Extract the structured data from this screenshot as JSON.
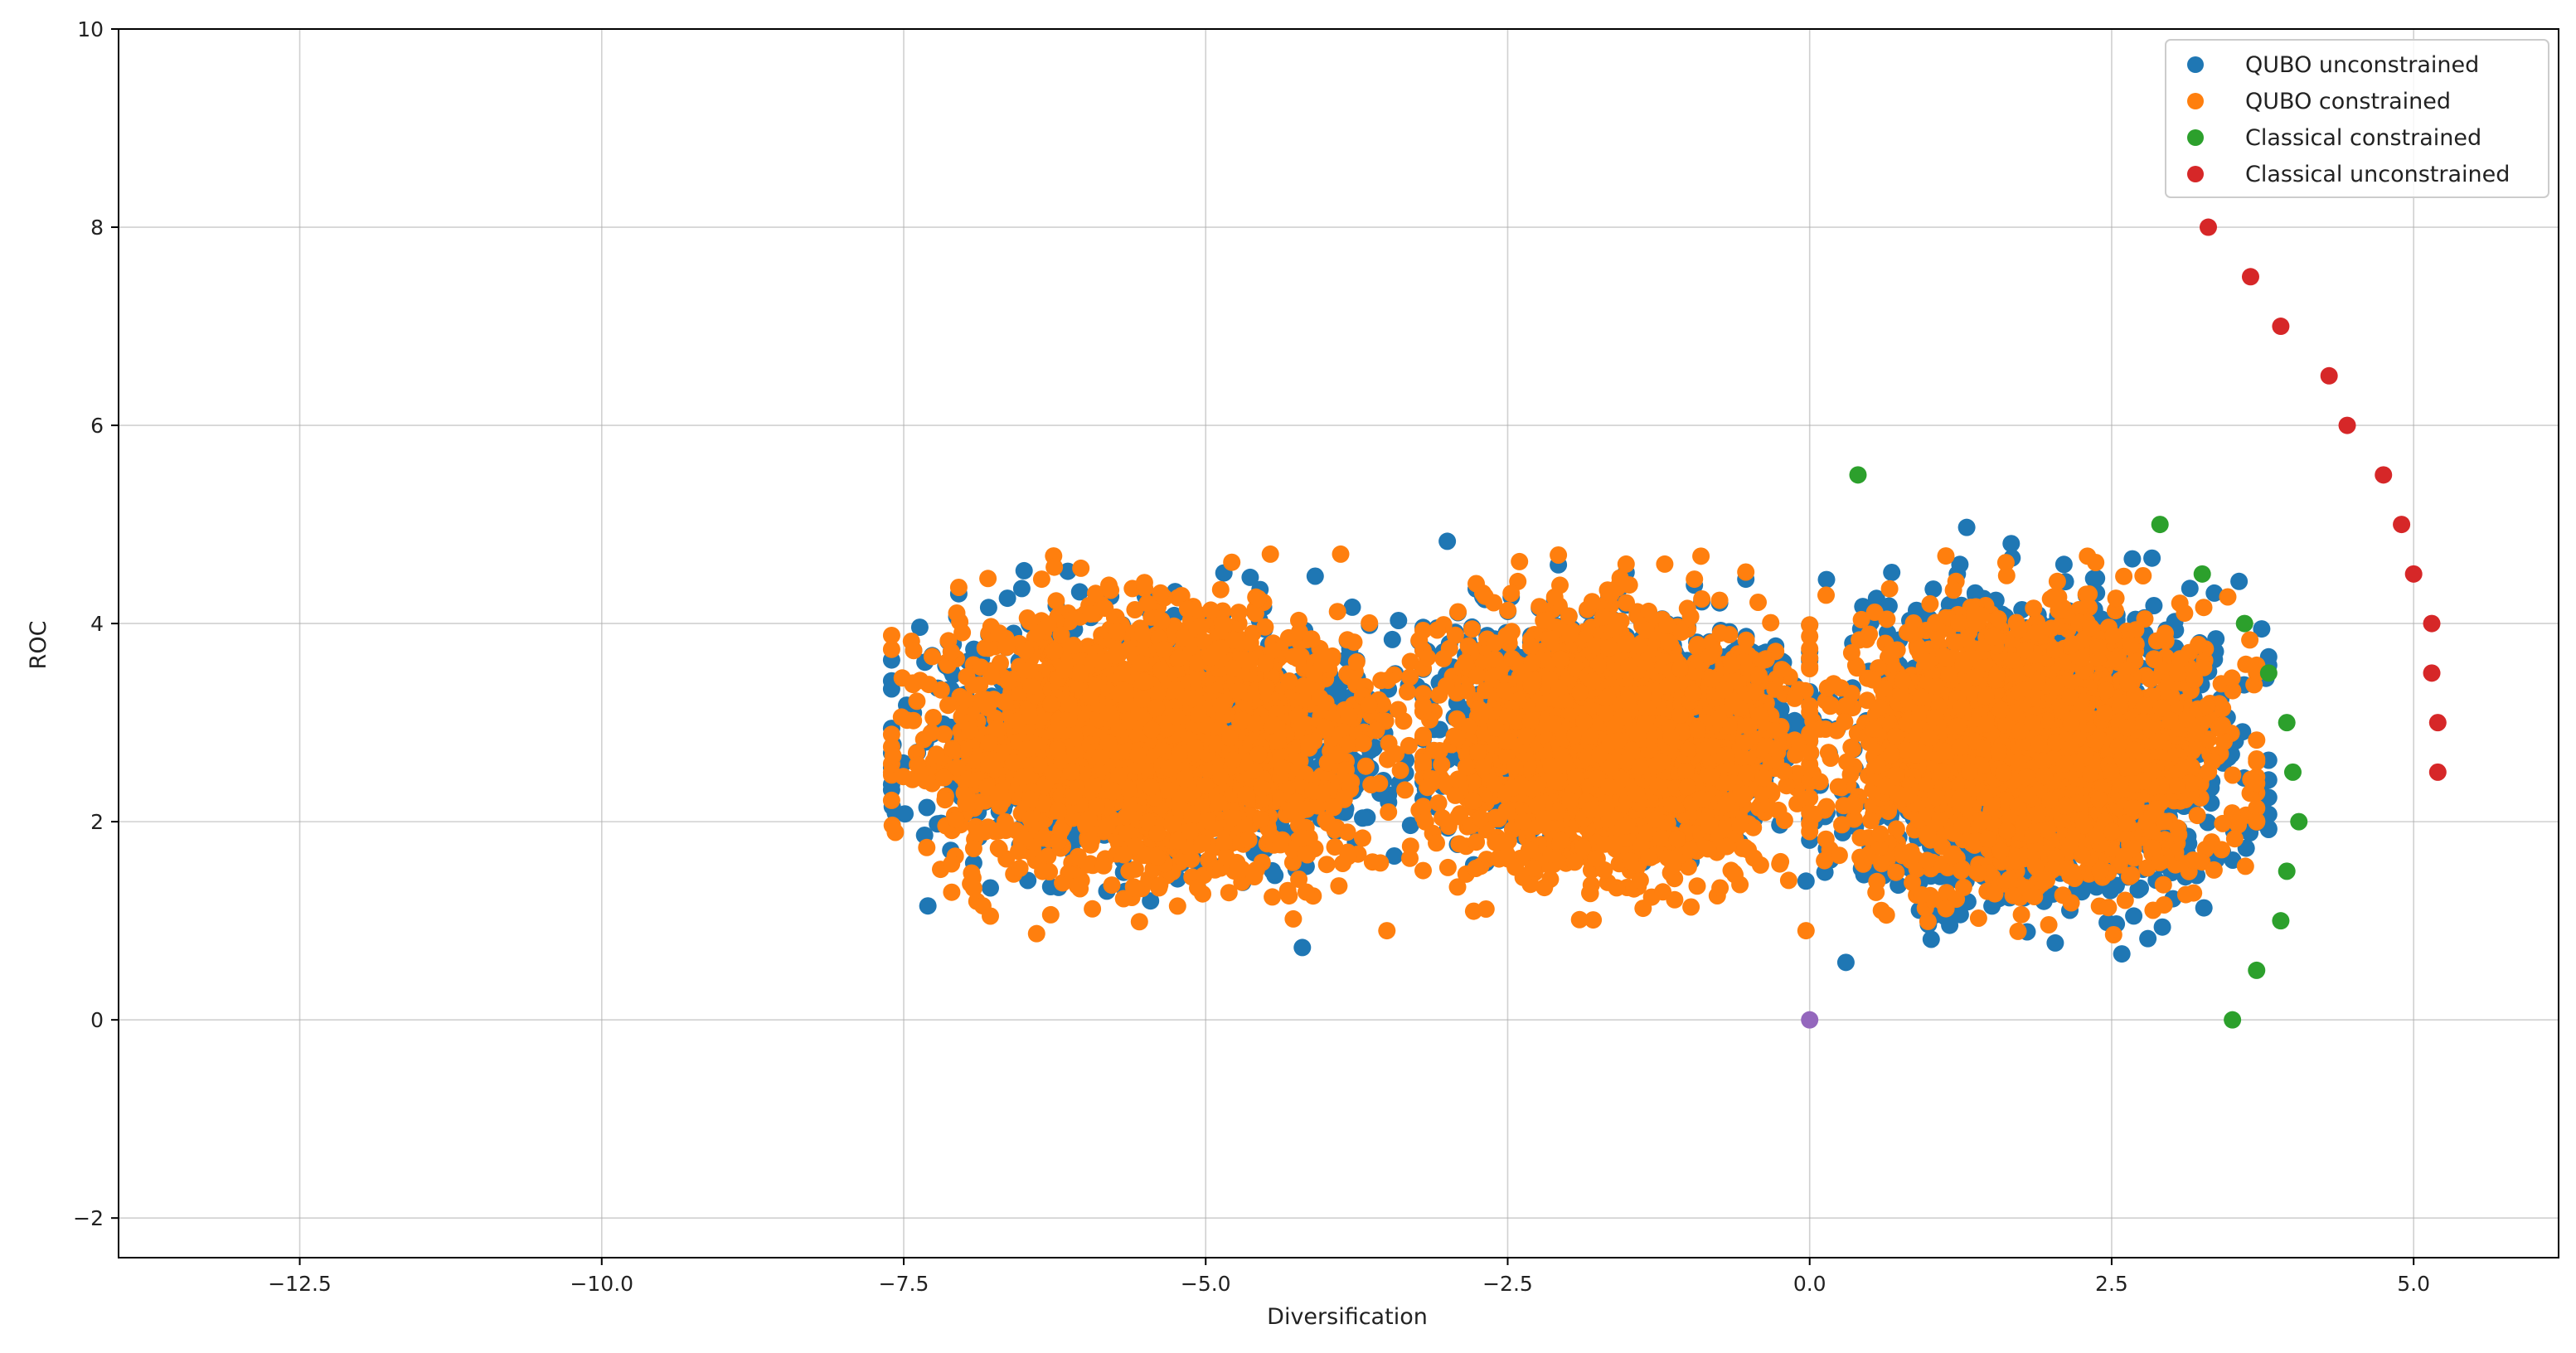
{
  "chart_data": {
    "type": "scatter",
    "xlabel": "Diversification",
    "ylabel": "ROC",
    "xlim": [
      -14,
      6.2
    ],
    "ylim": [
      -2.4,
      10
    ],
    "x_ticks": [
      -12.5,
      -10.0,
      -7.5,
      -5.0,
      -2.5,
      0.0,
      2.5,
      5.0
    ],
    "x_tick_labels": [
      "−12.5",
      "−10.0",
      "−7.5",
      "−5.0",
      "−2.5",
      "0.0",
      "2.5",
      "5.0"
    ],
    "y_ticks": [
      -2,
      0,
      2,
      4,
      6,
      8,
      10
    ],
    "y_tick_labels": [
      "−2",
      "0",
      "2",
      "4",
      "6",
      "8",
      "10"
    ],
    "grid": true,
    "legend_position": "upper-right",
    "series": [
      {
        "name": "QUBO unconstrained",
        "color": "#1f77b4",
        "point_count_estimate": 4000,
        "cloud_regions": [
          {
            "x_range": [
              -7.6,
              -3.2
            ],
            "y_range": [
              1.2,
              4.6
            ]
          },
          {
            "x_range": [
              -3.2,
              0.0
            ],
            "y_range": [
              1.4,
              4.6
            ]
          },
          {
            "x_range": [
              0.0,
              3.8
            ],
            "y_range": [
              0.6,
              4.9
            ]
          }
        ],
        "highlighted_points": [
          {
            "x": -4.2,
            "y": 0.73
          },
          {
            "x": 0.3,
            "y": 0.58
          },
          {
            "x": 1.3,
            "y": 4.97
          },
          {
            "x": -3.0,
            "y": 4.83
          },
          {
            "x": -7.3,
            "y": 1.15
          },
          {
            "x": 2.8,
            "y": 0.82
          }
        ]
      },
      {
        "name": "QUBO constrained",
        "color": "#ff7f0e",
        "point_count_estimate": 6000,
        "cloud_regions": [
          {
            "x_range": [
              -7.6,
              -3.2
            ],
            "y_range": [
              0.9,
              4.7
            ]
          },
          {
            "x_range": [
              -3.2,
              0.0
            ],
            "y_range": [
              0.9,
              4.7
            ]
          },
          {
            "x_range": [
              0.0,
              3.7
            ],
            "y_range": [
              0.8,
              4.7
            ]
          }
        ],
        "highlighted_points": [
          {
            "x": -6.4,
            "y": 0.87
          },
          {
            "x": -3.5,
            "y": 0.9
          },
          {
            "x": -7.6,
            "y": 3.88
          },
          {
            "x": -0.9,
            "y": 4.68
          },
          {
            "x": 2.3,
            "y": 4.68
          }
        ]
      },
      {
        "name": "Classical constrained",
        "color": "#2ca02c",
        "points": [
          {
            "x": 0.4,
            "y": 5.5
          },
          {
            "x": 2.9,
            "y": 5.0
          },
          {
            "x": 3.25,
            "y": 4.5
          },
          {
            "x": 3.6,
            "y": 4.0
          },
          {
            "x": 3.8,
            "y": 3.5
          },
          {
            "x": 3.95,
            "y": 3.0
          },
          {
            "x": 4.0,
            "y": 2.5
          },
          {
            "x": 4.05,
            "y": 2.0
          },
          {
            "x": 3.95,
            "y": 1.5
          },
          {
            "x": 3.9,
            "y": 1.0
          },
          {
            "x": 3.7,
            "y": 0.5
          },
          {
            "x": 3.5,
            "y": 0.0
          }
        ]
      },
      {
        "name": "Classical unconstrained",
        "color": "#d62728",
        "points": [
          {
            "x": 3.3,
            "y": 8.0
          },
          {
            "x": 3.65,
            "y": 7.5
          },
          {
            "x": 3.9,
            "y": 7.0
          },
          {
            "x": 4.3,
            "y": 6.5
          },
          {
            "x": 4.45,
            "y": 6.0
          },
          {
            "x": 4.75,
            "y": 5.5
          },
          {
            "x": 4.9,
            "y": 5.0
          },
          {
            "x": 5.0,
            "y": 4.5
          },
          {
            "x": 5.15,
            "y": 4.0
          },
          {
            "x": 5.15,
            "y": 3.5
          },
          {
            "x": 5.2,
            "y": 3.0
          },
          {
            "x": 5.2,
            "y": 2.5
          }
        ]
      },
      {
        "color": "#9467bd",
        "points": [
          {
            "x": 0.0,
            "y": 0.0
          }
        ]
      }
    ]
  }
}
